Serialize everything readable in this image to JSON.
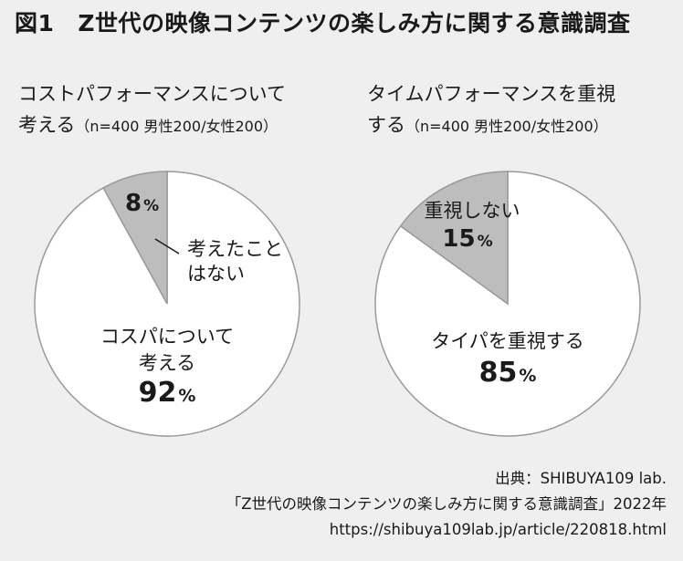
{
  "figure": {
    "label": "図1",
    "title": "Z世代の映像コンテンツの楽しみ方に関する意識調査"
  },
  "colors": {
    "background": "#efefef",
    "pie_main": "#ffffff",
    "pie_minor": "#bdbdbd",
    "outline": "#9a9a9a",
    "text": "#1a1a1a"
  },
  "chart_data": [
    {
      "type": "pie",
      "title_line1": "コストパフォーマンスについて",
      "title_line2": "考える",
      "sample_note": "（n=400 男性200/女性200）",
      "slices": [
        {
          "label_line1": "コスパについて",
          "label_line2": "考える",
          "value": 92,
          "value_text": "92",
          "unit": "%"
        },
        {
          "label_line1": "考えたこと",
          "label_line2": "はない",
          "value": 8,
          "value_text": "8",
          "unit": "%"
        }
      ]
    },
    {
      "type": "pie",
      "title_line1": "タイムパフォーマンスを重視",
      "title_line2": "する",
      "sample_note": "（n=400 男性200/女性200）",
      "slices": [
        {
          "label_line1": "タイパを重視する",
          "label_line2": "",
          "value": 85,
          "value_text": "85",
          "unit": "%"
        },
        {
          "label_line1": "重視しない",
          "label_line2": "",
          "value": 15,
          "value_text": "15",
          "unit": "%"
        }
      ]
    }
  ],
  "source": {
    "line1": "出典：SHIBUYA109 lab.",
    "line2": "「Z世代の映像コンテンツの楽しみ方に関する意識調査」2022年",
    "line3": "https://shibuya109lab.jp/article/220818.html"
  }
}
